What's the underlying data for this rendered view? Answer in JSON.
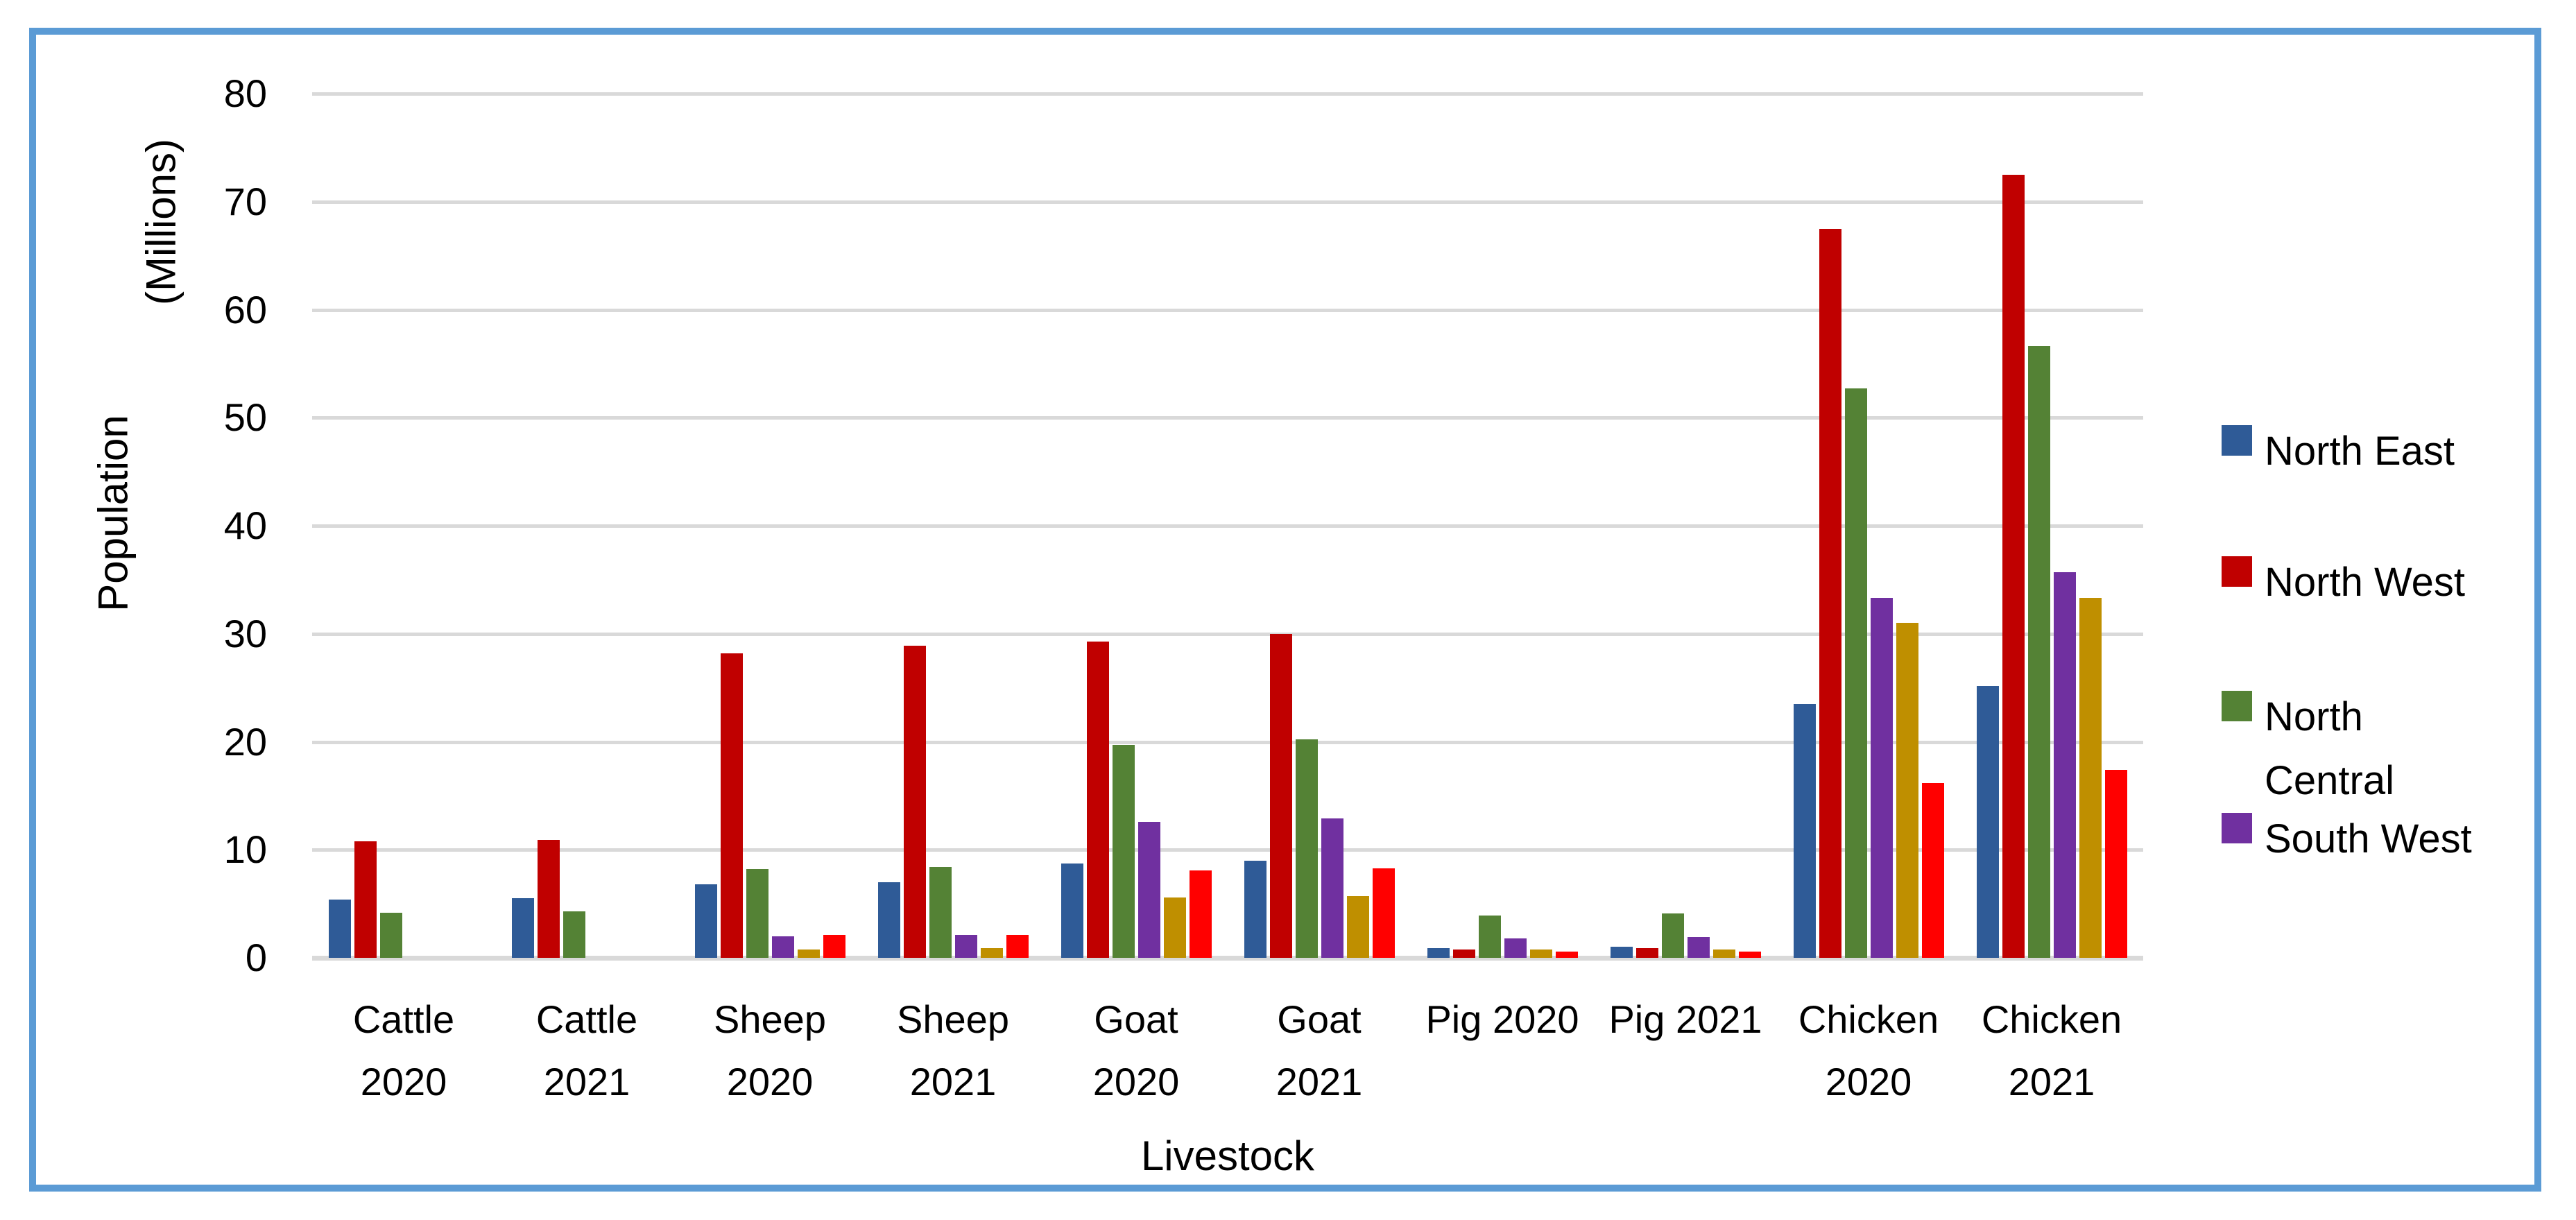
{
  "figure": {
    "border_color": "#5B9BD5",
    "background": "#FFFFFF",
    "gridline_color": "#D9D9D9",
    "axis_text_color": "#000000"
  },
  "chart_data": {
    "type": "bar",
    "title": "",
    "xlabel": "Livestock",
    "ylabel": "Population (Millions)",
    "ylabel_line1": "Population",
    "ylabel_line2": "(Millions)",
    "ylim": [
      0,
      80
    ],
    "yticks": [
      0,
      10,
      20,
      30,
      40,
      50,
      60,
      70,
      80
    ],
    "grid": true,
    "legend_position": "right",
    "categories": [
      "Cattle 2020",
      "Cattle 2021",
      "Sheep 2020",
      "Sheep 2021",
      "Goat 2020",
      "Goat 2021",
      "Pig 2020",
      "Pig 2021",
      "Chicken 2020",
      "Chicken 2021"
    ],
    "category_label_lines": [
      [
        "Cattle",
        "2020"
      ],
      [
        "Cattle",
        "2021"
      ],
      [
        "Sheep",
        "2020"
      ],
      [
        "Sheep",
        "2021"
      ],
      [
        "Goat",
        "2020"
      ],
      [
        "Goat",
        "2021"
      ],
      [
        "Pig 2020"
      ],
      [
        "Pig 2021"
      ],
      [
        "Chicken",
        "2020"
      ],
      [
        "Chicken",
        "2021"
      ]
    ],
    "series": [
      {
        "name": "North East",
        "color": "#2F5B97",
        "legend_label_lines": [
          "North East"
        ],
        "values": [
          5.4,
          5.5,
          6.8,
          7.0,
          8.7,
          9.0,
          0.9,
          1.0,
          23.5,
          25.2
        ]
      },
      {
        "name": "North West",
        "color": "#C00000",
        "legend_label_lines": [
          "North West"
        ],
        "values": [
          10.8,
          10.9,
          28.2,
          28.9,
          29.3,
          30.0,
          0.8,
          0.9,
          67.5,
          72.5
        ]
      },
      {
        "name": "North Central",
        "color": "#548235",
        "legend_label_lines": [
          "North",
          "Central"
        ],
        "values": [
          4.2,
          4.3,
          8.2,
          8.4,
          19.7,
          20.2,
          3.9,
          4.1,
          52.7,
          56.6
        ]
      },
      {
        "name": "South West",
        "color": "#7030A0",
        "legend_label_lines": [
          "South West"
        ],
        "values": [
          0,
          0,
          2.0,
          2.1,
          12.6,
          12.9,
          1.8,
          1.9,
          33.3,
          35.7
        ]
      },
      {
        "name": "",
        "color": "#BF8F00",
        "legend_label_lines": null,
        "values": [
          0,
          0,
          0.8,
          0.9,
          5.6,
          5.7,
          0.8,
          0.8,
          31.0,
          33.3
        ]
      },
      {
        "name": "",
        "color": "#FF0000",
        "legend_label_lines": null,
        "values": [
          0,
          0,
          2.1,
          2.1,
          8.1,
          8.3,
          0.6,
          0.6,
          16.2,
          17.4
        ]
      }
    ]
  }
}
